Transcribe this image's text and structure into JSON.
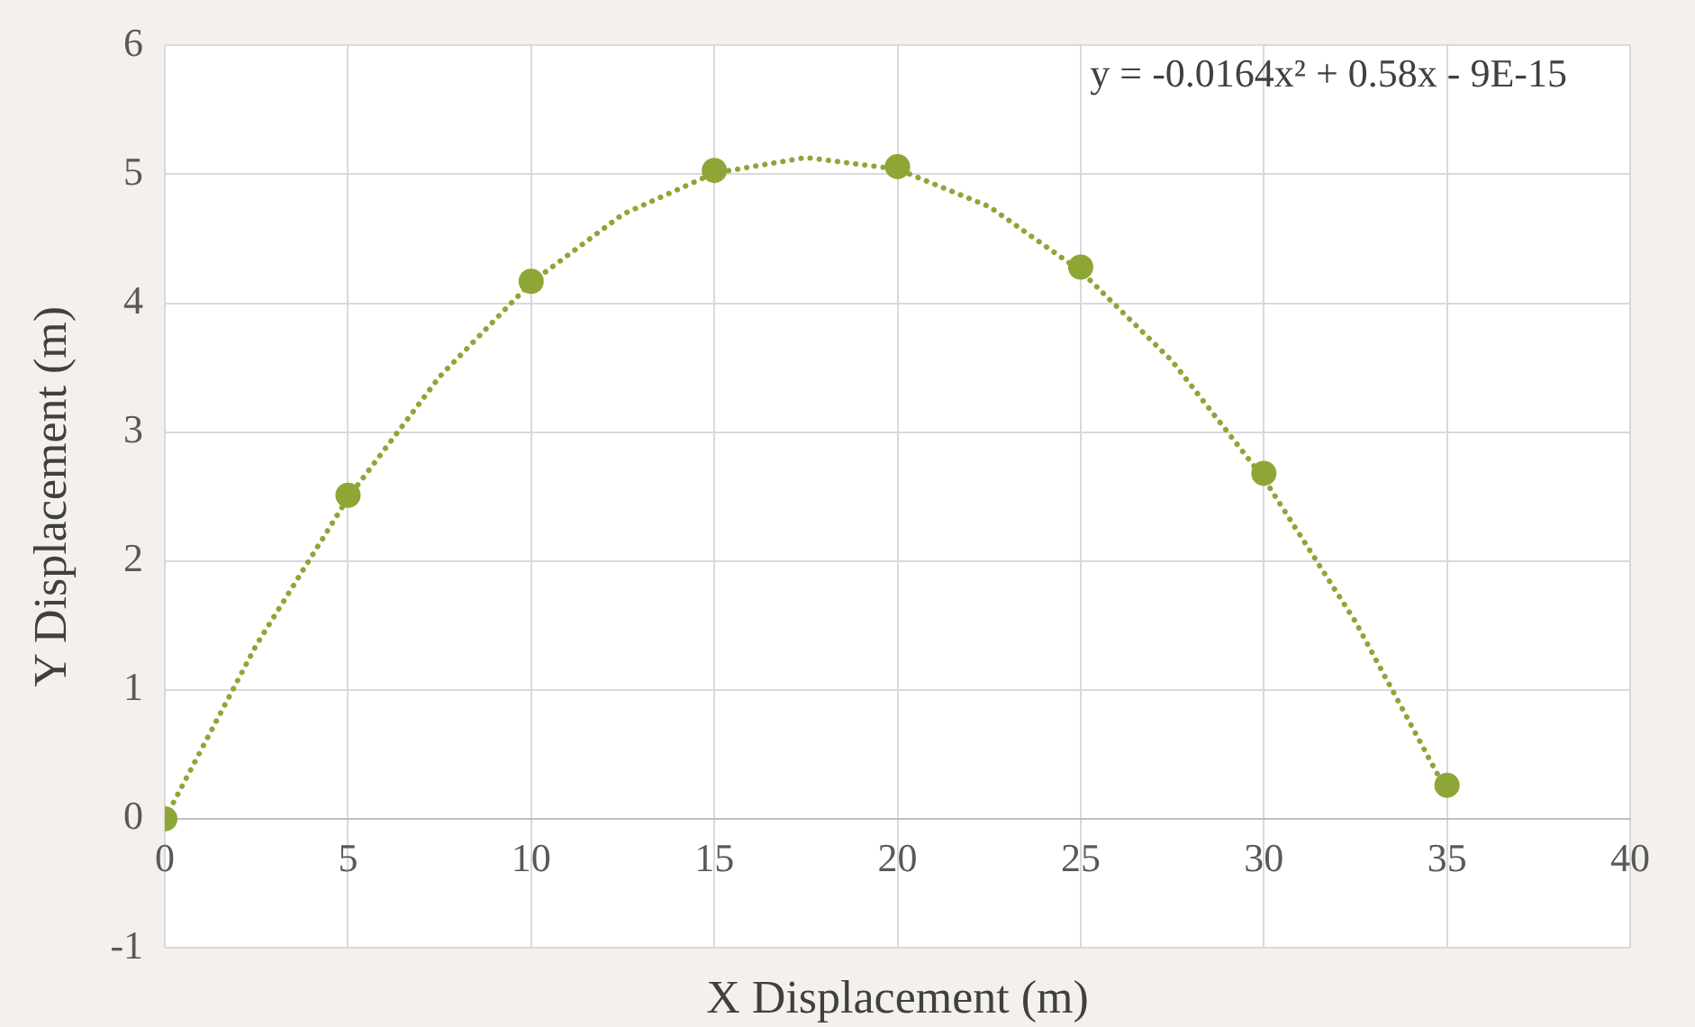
{
  "chart_data": {
    "type": "scatter",
    "xlabel": "X Displacement (m)",
    "ylabel": "Y Displacement (m)",
    "x": [
      0,
      5,
      10,
      15,
      20,
      25,
      30,
      35
    ],
    "series": [
      {
        "color": "#8ea636",
        "values": [
          0,
          2.51,
          4.17,
          5.03,
          5.06,
          4.28,
          2.68,
          0.26
        ]
      },
      {
        "type": "line",
        "color": "#8ea636",
        "line_style": "dotted",
        "marker": "none",
        "x": [
          0,
          2.5,
          5,
          7.5,
          10,
          12.5,
          15,
          17.5,
          20,
          22.5,
          25,
          27.5,
          30,
          32.5,
          35
        ],
        "values": [
          0,
          1.35,
          2.49,
          3.43,
          4.16,
          4.69,
          5.01,
          5.13,
          5.04,
          4.75,
          4.25,
          3.55,
          2.64,
          1.53,
          0.21
        ]
      }
    ],
    "annotations": [
      "y = -0.0164x² + 0.58x - 9E-15"
    ],
    "marker": "circle",
    "xlim": [
      0,
      40
    ],
    "xticks": [
      0,
      5,
      10,
      15,
      20,
      25,
      30,
      35,
      40
    ],
    "ylim": [
      -1,
      6
    ],
    "yticks": [
      -1,
      0,
      1,
      2,
      3,
      4,
      5,
      6
    ],
    "grid": true,
    "legend": false
  }
}
